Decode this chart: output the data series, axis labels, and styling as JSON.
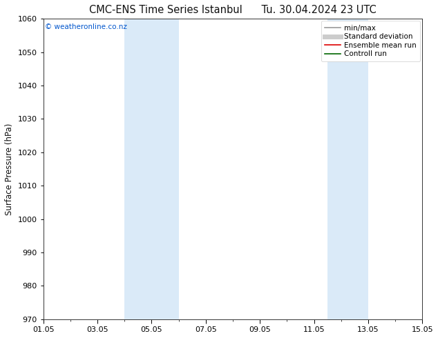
{
  "title": "CMC-ENS Time Series Istanbul",
  "title2": "Tu. 30.04.2024 23 UTC",
  "ylabel": "Surface Pressure (hPa)",
  "ylim": [
    970,
    1060
  ],
  "yticks": [
    970,
    980,
    990,
    1000,
    1010,
    1020,
    1030,
    1040,
    1050,
    1060
  ],
  "xtick_labels": [
    "01.05",
    "03.05",
    "05.05",
    "07.05",
    "09.05",
    "11.05",
    "13.05",
    "15.05"
  ],
  "xtick_vals": [
    0,
    2,
    4,
    6,
    8,
    10,
    12,
    14
  ],
  "xlim": [
    0,
    14
  ],
  "shaded_bands": [
    {
      "x_start": 3.0,
      "x_end": 5.0
    },
    {
      "x_start": 10.5,
      "x_end": 12.0
    }
  ],
  "shade_color": "#daeaf8",
  "watermark": "© weatheronline.co.nz",
  "watermark_color": "#0055cc",
  "legend_items": [
    {
      "label": "min/max",
      "color": "#999999",
      "lw": 1.2
    },
    {
      "label": "Standard deviation",
      "color": "#cccccc",
      "lw": 5
    },
    {
      "label": "Ensemble mean run",
      "color": "#dd0000",
      "lw": 1.2
    },
    {
      "label": "Controll run",
      "color": "#006600",
      "lw": 1.2
    }
  ],
  "bg_color": "#ffffff",
  "font_color": "#111111",
  "title_fontsize": 10.5,
  "axis_label_fontsize": 8.5,
  "tick_fontsize": 8,
  "legend_fontsize": 7.5
}
